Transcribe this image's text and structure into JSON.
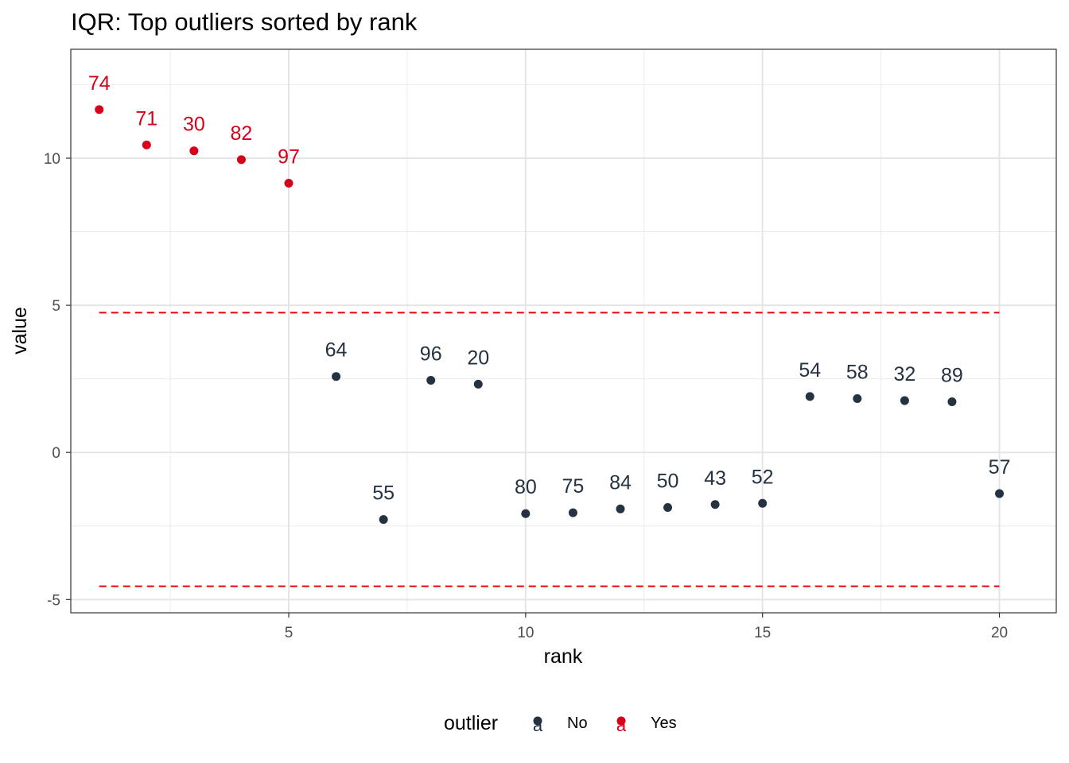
{
  "chart_data": {
    "type": "scatter",
    "title": "IQR: Top outliers sorted by rank",
    "xlabel": "rank",
    "ylabel": "value",
    "xlim": [
      0.4,
      21.2
    ],
    "ylim": [
      -5.45,
      13.7
    ],
    "x_ticks": [
      5,
      10,
      15,
      20
    ],
    "y_ticks": [
      -5,
      0,
      5,
      10
    ],
    "x_tick_labels": [
      "5",
      "10",
      "15",
      "20"
    ],
    "y_tick_labels": [
      "-5",
      "0",
      "5",
      "10"
    ],
    "grid": true,
    "thresholds": [
      {
        "y": 4.75,
        "x_from": 1,
        "x_to": 20,
        "style": "dashed",
        "color": "#ee0000"
      },
      {
        "y": -4.55,
        "x_from": 1,
        "x_to": 20,
        "style": "dashed",
        "color": "#ee0000"
      }
    ],
    "series": [
      {
        "name": "Yes",
        "color": "#d7001a",
        "points": [
          {
            "x": 1,
            "y": 11.65,
            "label": "74"
          },
          {
            "x": 2,
            "y": 10.45,
            "label": "71"
          },
          {
            "x": 3,
            "y": 10.25,
            "label": "30"
          },
          {
            "x": 4,
            "y": 9.95,
            "label": "82"
          },
          {
            "x": 5,
            "y": 9.15,
            "label": "97"
          }
        ]
      },
      {
        "name": "No",
        "color": "#243242",
        "points": [
          {
            "x": 6,
            "y": 2.58,
            "label": "64"
          },
          {
            "x": 7,
            "y": -2.28,
            "label": "55"
          },
          {
            "x": 8,
            "y": 2.45,
            "label": "96"
          },
          {
            "x": 9,
            "y": 2.32,
            "label": "20"
          },
          {
            "x": 10,
            "y": -2.08,
            "label": "80"
          },
          {
            "x": 11,
            "y": -2.05,
            "label": "75"
          },
          {
            "x": 12,
            "y": -1.92,
            "label": "84"
          },
          {
            "x": 13,
            "y": -1.87,
            "label": "50"
          },
          {
            "x": 14,
            "y": -1.77,
            "label": "43"
          },
          {
            "x": 15,
            "y": -1.73,
            "label": "52"
          },
          {
            "x": 16,
            "y": 1.9,
            "label": "54"
          },
          {
            "x": 17,
            "y": 1.83,
            "label": "58"
          },
          {
            "x": 18,
            "y": 1.76,
            "label": "32"
          },
          {
            "x": 19,
            "y": 1.72,
            "label": "89"
          },
          {
            "x": 20,
            "y": -1.4,
            "label": "57"
          }
        ]
      }
    ],
    "legend": {
      "title": "outlier",
      "position": "bottom",
      "key_glyph": "a",
      "entries": [
        {
          "label": "No",
          "color": "#243242"
        },
        {
          "label": "Yes",
          "color": "#d7001a"
        }
      ]
    }
  }
}
